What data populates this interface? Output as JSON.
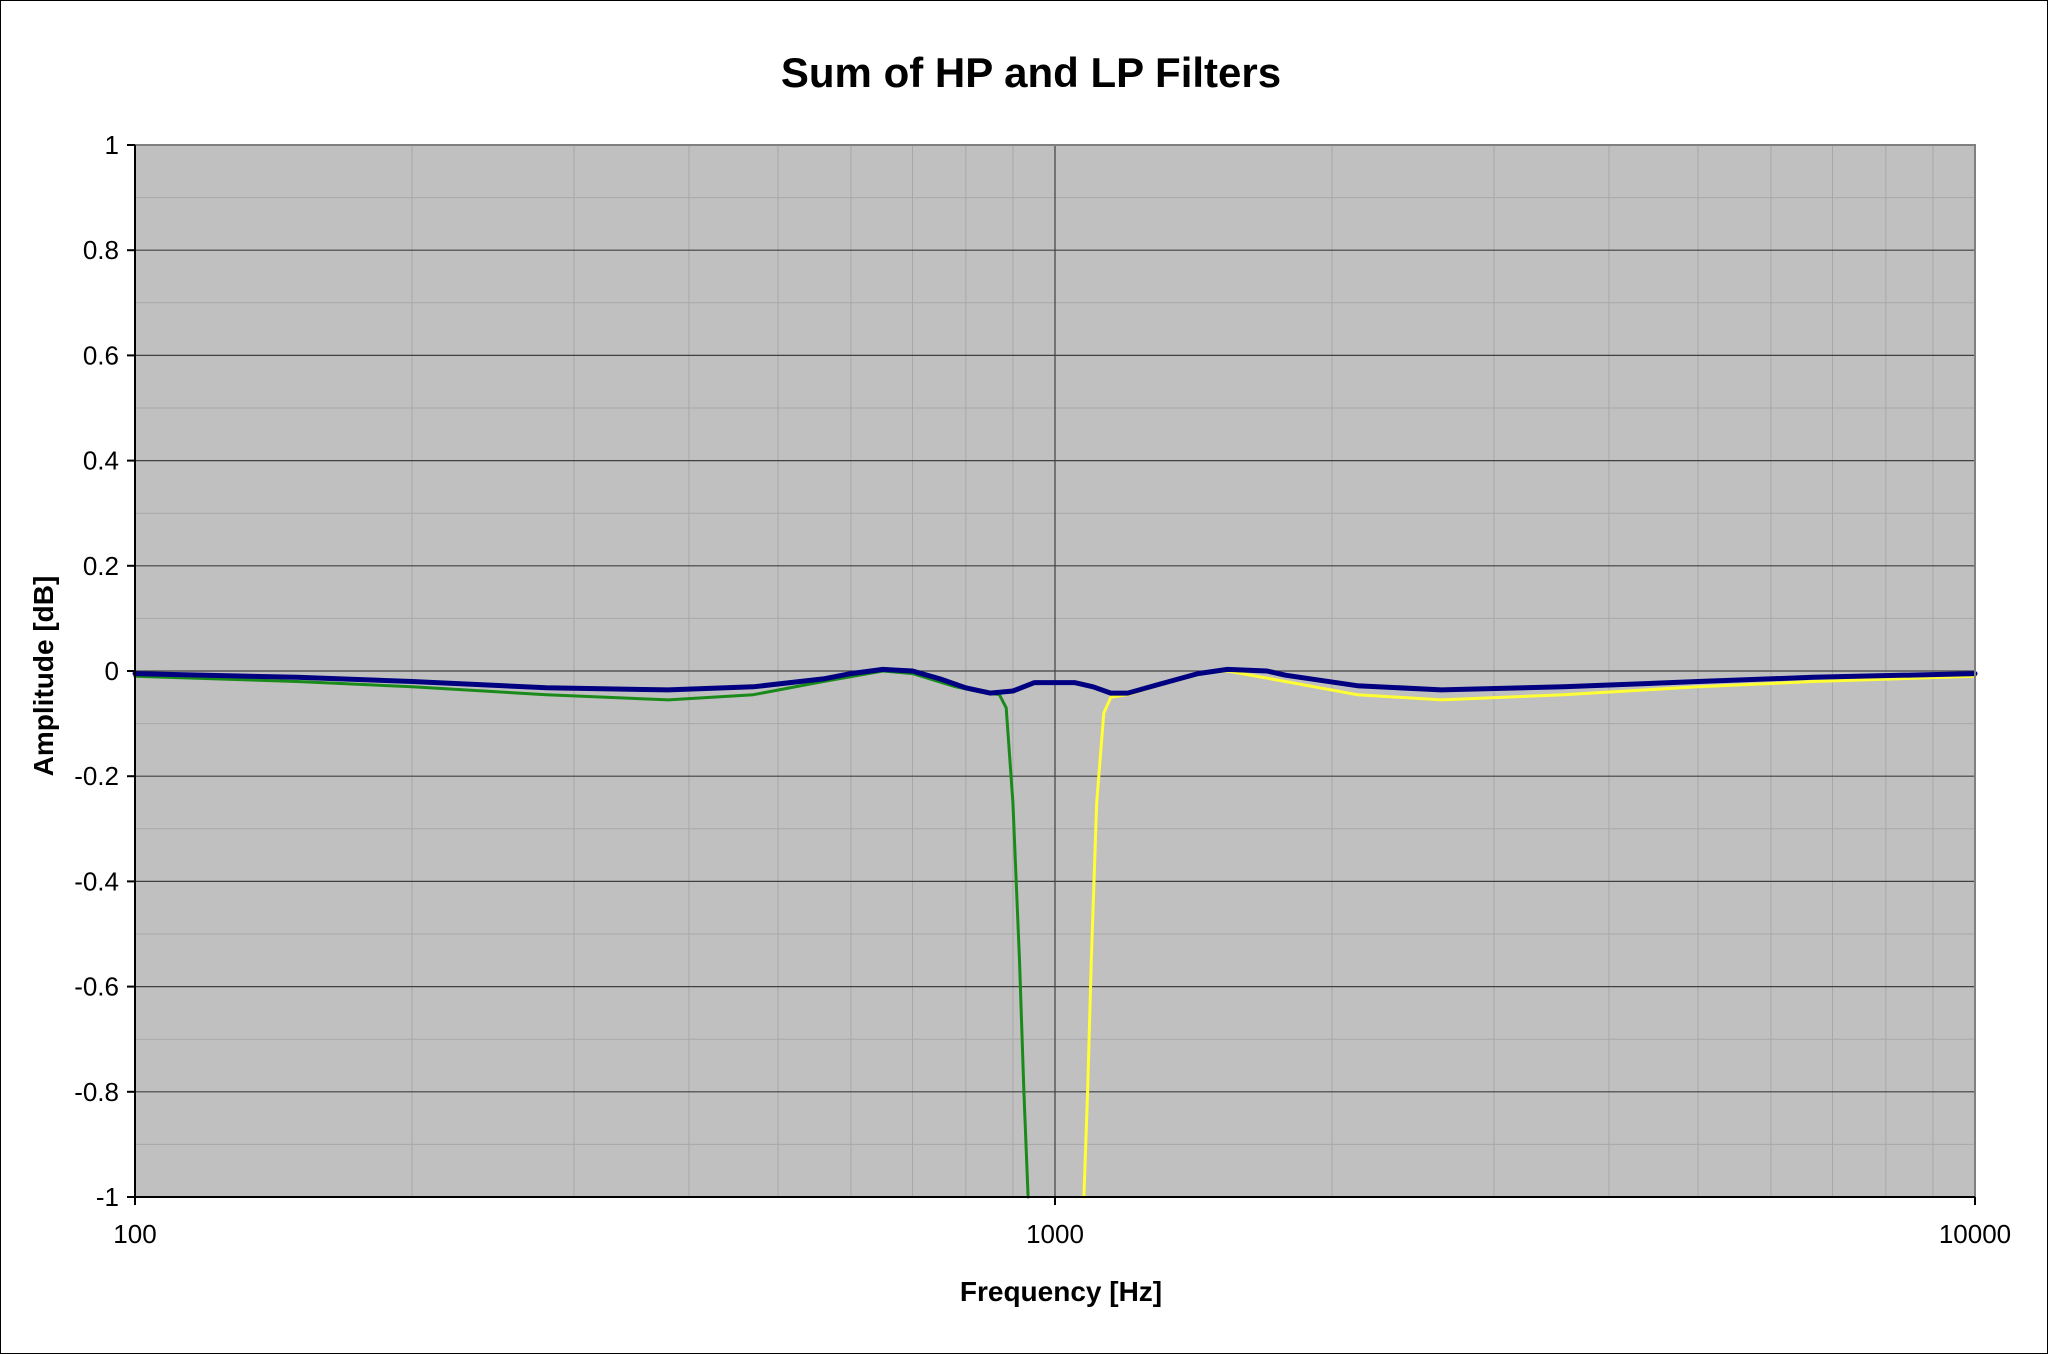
{
  "chart_data": {
    "type": "line",
    "title": "Sum of HP and LP Filters",
    "xlabel": "Frequency [Hz]",
    "ylabel": "Amplitude [dB]",
    "xscale": "log",
    "xlim": [
      100,
      10000
    ],
    "ylim": [
      -1,
      1
    ],
    "x_ticks": [
      "100",
      "1000",
      "10000"
    ],
    "y_ticks": [
      "1",
      "0.8",
      "0.6",
      "0.4",
      "0.2",
      "0",
      "-0.2",
      "-0.4",
      "-0.6",
      "-0.8",
      "-1"
    ],
    "grid": true,
    "legend": "none",
    "plot_background": "#c0c0c0",
    "series": [
      {
        "color": "#1a8a1a",
        "points": [
          [
            100,
            -0.01
          ],
          [
            150,
            -0.02
          ],
          [
            200,
            -0.03
          ],
          [
            280,
            -0.045
          ],
          [
            380,
            -0.055
          ],
          [
            470,
            -0.045
          ],
          [
            560,
            -0.02
          ],
          [
            650,
            0.0
          ],
          [
            700,
            -0.005
          ],
          [
            780,
            -0.03
          ],
          [
            830,
            -0.04
          ],
          [
            870,
            -0.045
          ],
          [
            885,
            -0.07
          ],
          [
            900,
            -0.25
          ],
          [
            915,
            -0.55
          ],
          [
            925,
            -0.8
          ],
          [
            935,
            -1.0
          ]
        ]
      },
      {
        "color": "#ffff33",
        "points": [
          [
            1075,
            -1.0
          ],
          [
            1085,
            -0.8
          ],
          [
            1095,
            -0.55
          ],
          [
            1110,
            -0.25
          ],
          [
            1130,
            -0.08
          ],
          [
            1150,
            -0.05
          ],
          [
            1200,
            -0.045
          ],
          [
            1280,
            -0.03
          ],
          [
            1430,
            -0.005
          ],
          [
            1540,
            0.0
          ],
          [
            1780,
            -0.02
          ],
          [
            2130,
            -0.045
          ],
          [
            2630,
            -0.055
          ],
          [
            3570,
            -0.045
          ],
          [
            5000,
            -0.03
          ],
          [
            6670,
            -0.02
          ],
          [
            10000,
            -0.01
          ]
        ]
      },
      {
        "color": "#000080",
        "points": [
          [
            100,
            -0.005
          ],
          [
            150,
            -0.012
          ],
          [
            200,
            -0.02
          ],
          [
            280,
            -0.032
          ],
          [
            380,
            -0.036
          ],
          [
            470,
            -0.03
          ],
          [
            560,
            -0.015
          ],
          [
            600,
            -0.005
          ],
          [
            650,
            0.003
          ],
          [
            700,
            0.0
          ],
          [
            750,
            -0.015
          ],
          [
            800,
            -0.032
          ],
          [
            850,
            -0.042
          ],
          [
            900,
            -0.038
          ],
          [
            950,
            -0.022
          ],
          [
            1000,
            -0.022
          ],
          [
            1050,
            -0.022
          ],
          [
            1100,
            -0.03
          ],
          [
            1150,
            -0.042
          ],
          [
            1200,
            -0.042
          ],
          [
            1300,
            -0.025
          ],
          [
            1430,
            -0.005
          ],
          [
            1540,
            0.003
          ],
          [
            1700,
            0.0
          ],
          [
            1780,
            -0.008
          ],
          [
            2130,
            -0.028
          ],
          [
            2630,
            -0.036
          ],
          [
            3570,
            -0.03
          ],
          [
            5000,
            -0.02
          ],
          [
            6670,
            -0.012
          ],
          [
            10000,
            -0.005
          ]
        ]
      }
    ]
  }
}
